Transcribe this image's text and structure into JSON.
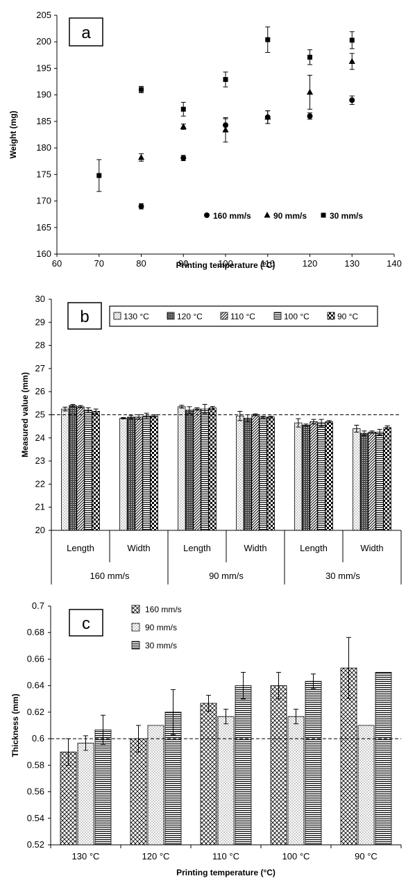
{
  "chart_data": [
    {
      "panel": "a",
      "type": "scatter",
      "xlabel": "Printing temperature (°C)",
      "ylabel": "Weight (mg)",
      "xlim": [
        60,
        140
      ],
      "ylim": [
        160,
        205
      ],
      "xticks": [
        60,
        70,
        80,
        90,
        100,
        110,
        120,
        130,
        140
      ],
      "yticks": [
        160,
        165,
        170,
        175,
        180,
        185,
        190,
        195,
        200,
        205
      ],
      "legend_position": "bottom-right",
      "grid": false,
      "series": [
        {
          "name": "160 mm/s",
          "marker": "circle",
          "x": [
            80,
            90,
            100,
            110,
            120,
            130
          ],
          "y": [
            169.0,
            178.1,
            184.3,
            185.8,
            186.0,
            189.0
          ],
          "err": [
            0.5,
            0.5,
            1.2,
            1.2,
            0.6,
            0.8
          ]
        },
        {
          "name": "90 mm/s",
          "marker": "triangle",
          "x": [
            80,
            90,
            100,
            110,
            120,
            130
          ],
          "y": [
            178.2,
            184.0,
            183.4,
            185.8,
            190.5,
            196.3
          ],
          "err": [
            0.7,
            0.5,
            2.3,
            1.2,
            3.2,
            1.5
          ]
        },
        {
          "name": "30 mm/s",
          "marker": "square",
          "x": [
            70,
            80,
            90,
            100,
            110,
            120,
            130
          ],
          "y": [
            174.8,
            191.0,
            187.3,
            192.9,
            200.4,
            197.1,
            200.3
          ],
          "err": [
            3.0,
            0.6,
            1.3,
            1.4,
            2.4,
            1.4,
            1.6
          ]
        }
      ]
    },
    {
      "panel": "b",
      "type": "bar",
      "ylabel": "Measured value (mm)",
      "ylim": [
        20,
        30
      ],
      "yticks": [
        20,
        21,
        22,
        23,
        24,
        25,
        26,
        27,
        28,
        29,
        30
      ],
      "reference_line": 25,
      "categories": [
        "Length",
        "Width",
        "Length",
        "Width",
        "Length",
        "Width"
      ],
      "groups": [
        "160 mm/s",
        "90 mm/s",
        "30 mm/s"
      ],
      "legend_position": "top",
      "series": [
        {
          "name": "130 °C",
          "pattern": "dots",
          "values": [
            25.25,
            24.85,
            25.35,
            24.95,
            24.65,
            24.4
          ],
          "err": [
            0.08,
            0.03,
            0.06,
            0.2,
            0.18,
            0.15
          ]
        },
        {
          "name": "120 °C",
          "pattern": "dense",
          "values": [
            25.4,
            24.9,
            25.2,
            24.85,
            24.55,
            24.2
          ],
          "err": [
            0.05,
            0.08,
            0.15,
            0.15,
            0.05,
            0.1
          ]
        },
        {
          "name": "110 °C",
          "pattern": "diagonal",
          "values": [
            25.35,
            24.9,
            25.25,
            25.0,
            24.7,
            24.25
          ],
          "err": [
            0.05,
            0.1,
            0.05,
            0.04,
            0.1,
            0.05
          ]
        },
        {
          "name": "100 °C",
          "pattern": "horizontal",
          "values": [
            25.2,
            24.95,
            25.25,
            24.9,
            24.65,
            24.25
          ],
          "err": [
            0.1,
            0.12,
            0.2,
            0.04,
            0.15,
            0.12
          ]
        },
        {
          "name": "90 °C",
          "pattern": "checker",
          "values": [
            25.15,
            24.95,
            25.3,
            24.9,
            24.7,
            24.45
          ],
          "err": [
            0.1,
            0.05,
            0.06,
            0.04,
            0.05,
            0.07
          ]
        }
      ]
    },
    {
      "panel": "c",
      "type": "bar",
      "xlabel": "Printing temperature (°C)",
      "ylabel": "Thickness (mm)",
      "ylim": [
        0.52,
        0.7
      ],
      "yticks": [
        "0.52",
        "0.54",
        "0.56",
        "0.58",
        "0.6",
        "0.62",
        "0.64",
        "0.66",
        "0.68",
        "0.7"
      ],
      "reference_line": 0.6,
      "categories": [
        "130 °C",
        "120 °C",
        "110 °C",
        "100 °C",
        "90 °C"
      ],
      "legend_position": "top-left",
      "series": [
        {
          "name": "160 mm/s",
          "pattern": "crosshatch",
          "values": [
            0.59,
            0.6,
            0.6267,
            0.64,
            0.6533
          ],
          "err": [
            0.01,
            0.01,
            0.006,
            0.01,
            0.023
          ]
        },
        {
          "name": "90 mm/s",
          "pattern": "dots",
          "values": [
            0.5967,
            0.61,
            0.6167,
            0.6167,
            0.61
          ],
          "err": [
            0.0055,
            0,
            0.0055,
            0.0055,
            0
          ]
        },
        {
          "name": "30 mm/s",
          "pattern": "horizontal",
          "values": [
            0.6067,
            0.62,
            0.64,
            0.6433,
            0.65
          ],
          "err": [
            0.011,
            0.017,
            0.01,
            0.0055,
            0
          ]
        }
      ]
    }
  ],
  "panel_labels": {
    "a": "a",
    "b": "b",
    "c": "c"
  }
}
